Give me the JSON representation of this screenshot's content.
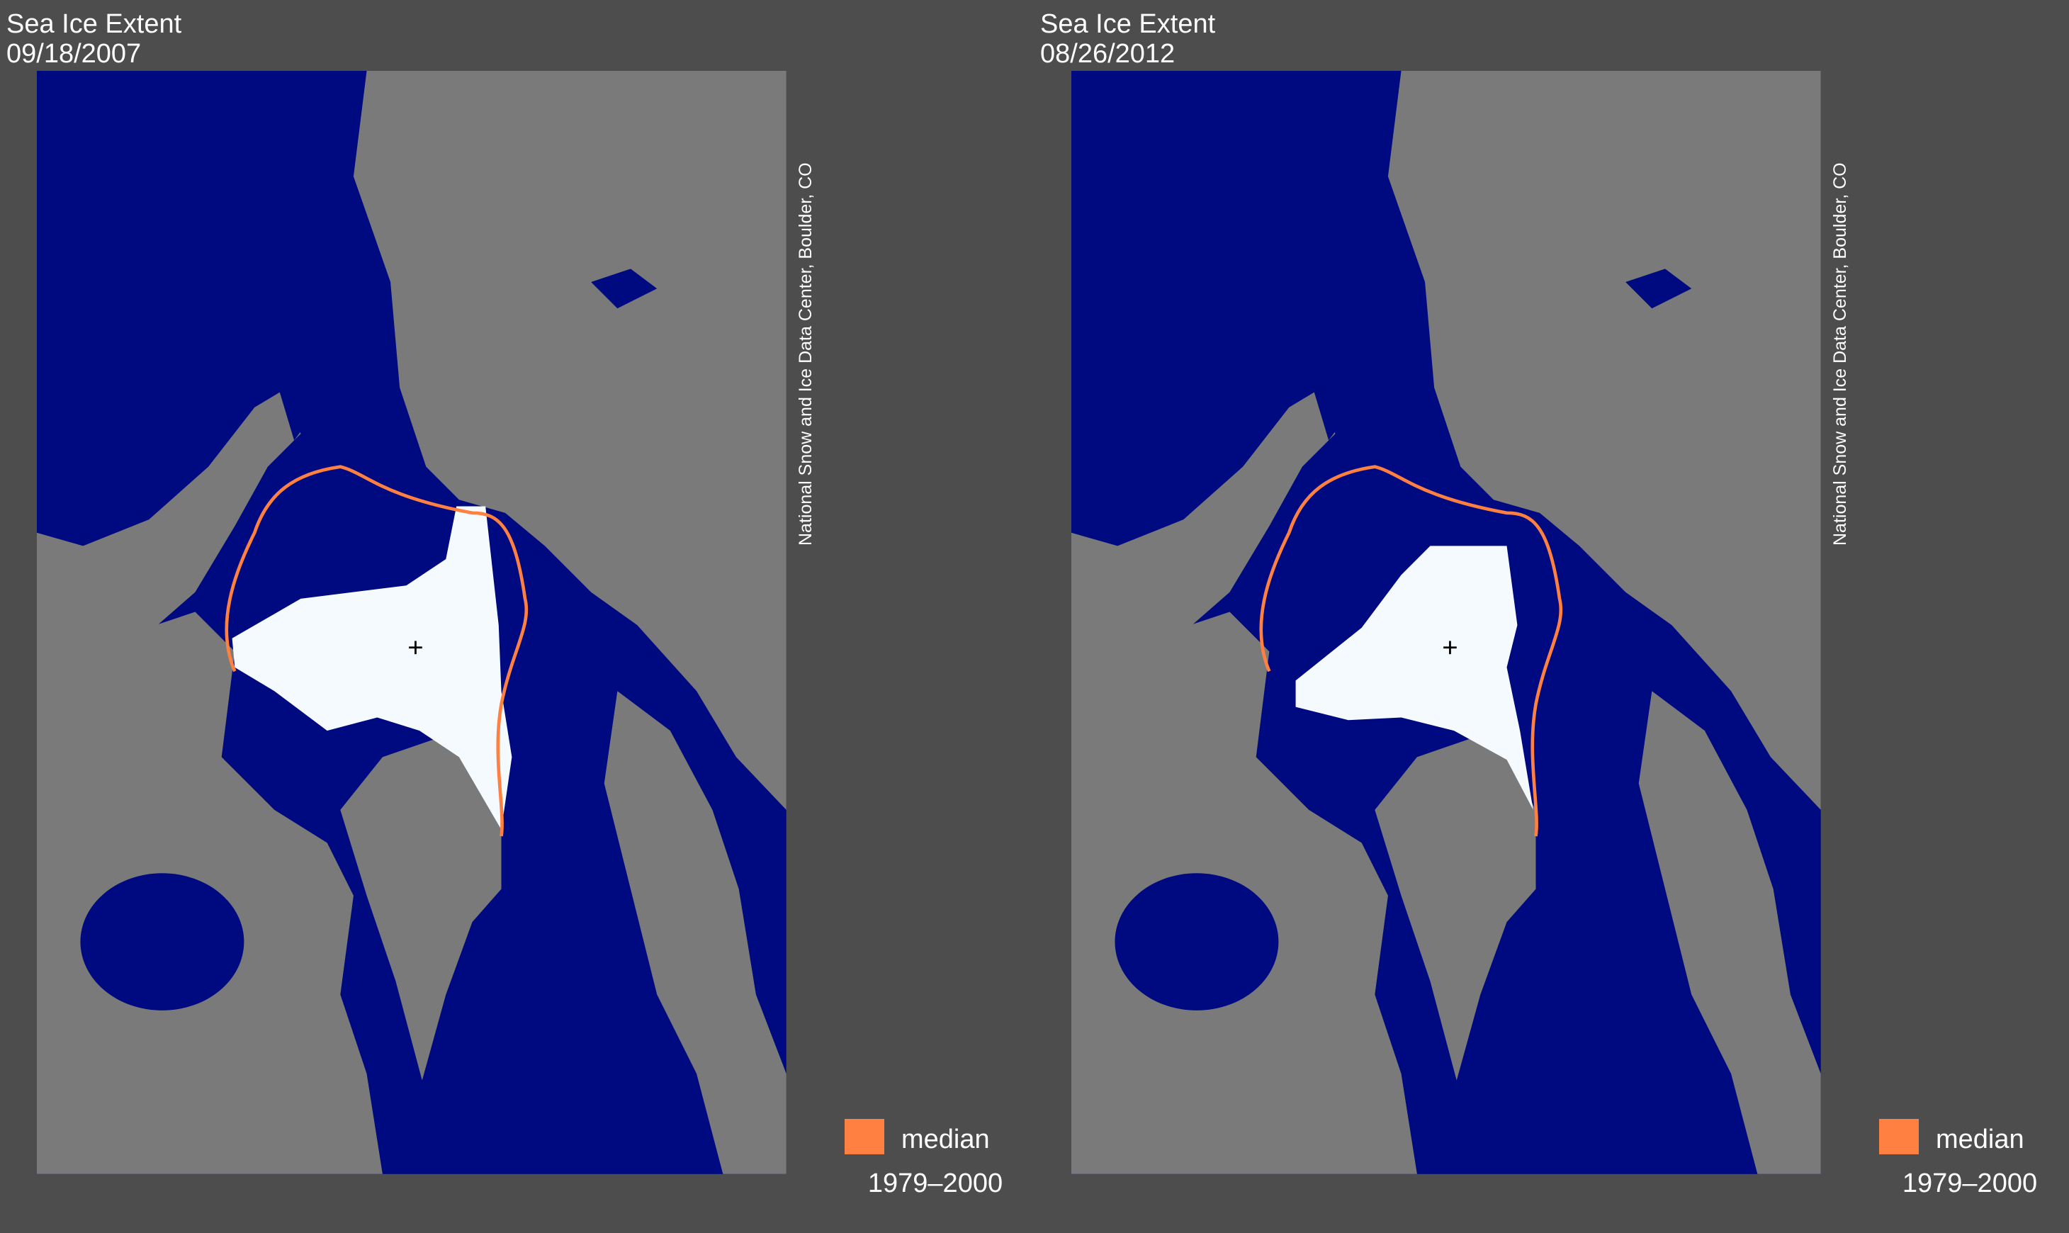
{
  "panels": [
    {
      "title": "Sea Ice Extent",
      "date": "09/18/2007",
      "credit": "National Snow and Ice Data Center, Boulder, CO",
      "legend": {
        "label": "median",
        "range": "1979–2000",
        "color": "#ff8040"
      }
    },
    {
      "title": "Sea Ice Extent",
      "date": "08/26/2012",
      "credit": "National Snow and Ice Data Center, Boulder, CO",
      "legend": {
        "label": "median",
        "range": "1979–2000",
        "color": "#ff8040"
      }
    }
  ]
}
